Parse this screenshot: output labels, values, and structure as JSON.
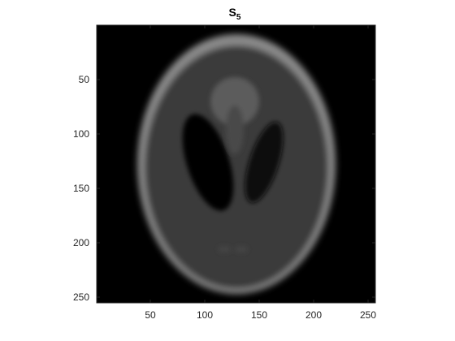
{
  "figure": {
    "title": "S",
    "title_subscript": "5",
    "colormap": "gray",
    "background_color": "#ffffff",
    "image_background": "#000000"
  },
  "axes": {
    "x_ticks": [
      "50",
      "100",
      "150",
      "200",
      "250"
    ],
    "y_ticks": [
      "50",
      "100",
      "150",
      "200",
      "250"
    ]
  },
  "image": {
    "subject": "Shepp-Logan phantom (blurred)",
    "outer_ring_gray": "#8c8c8c",
    "inner_fill_gray": "#3a3a3a",
    "dark_ellipses_gray": "#050505",
    "top_blob_gray": "#5a5a5a"
  }
}
